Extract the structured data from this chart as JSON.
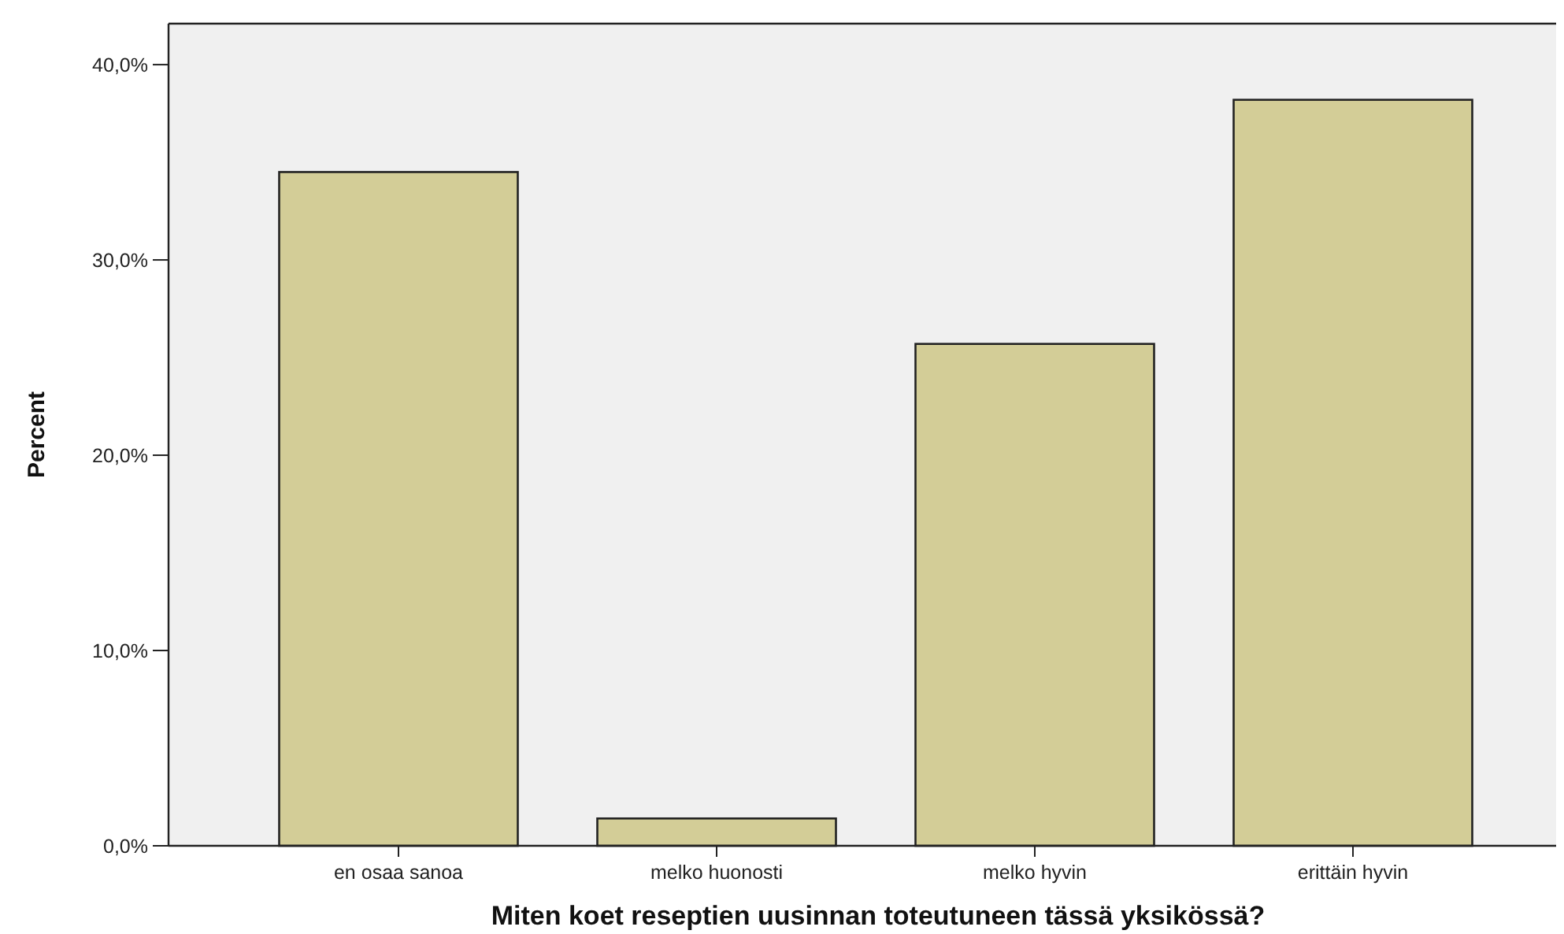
{
  "chart_data": {
    "type": "bar",
    "xlabel": "Miten koet reseptien uusinnan toteutuneen tässä yksikössä?",
    "ylabel": "Percent",
    "categories": [
      "en osaa sanoa",
      "melko huonosti",
      "melko hyvin",
      "erittäin hyvin"
    ],
    "values": [
      34.5,
      1.4,
      25.7,
      38.2
    ],
    "color": "#d3cd97",
    "ylim": [
      0,
      42.1
    ],
    "yticks": [
      {
        "value": 0,
        "label": "0,0%"
      },
      {
        "value": 10,
        "label": "10,0%"
      },
      {
        "value": 20,
        "label": "20,0%"
      },
      {
        "value": 30,
        "label": "30,0%"
      },
      {
        "value": 40,
        "label": "40,0%"
      }
    ]
  }
}
